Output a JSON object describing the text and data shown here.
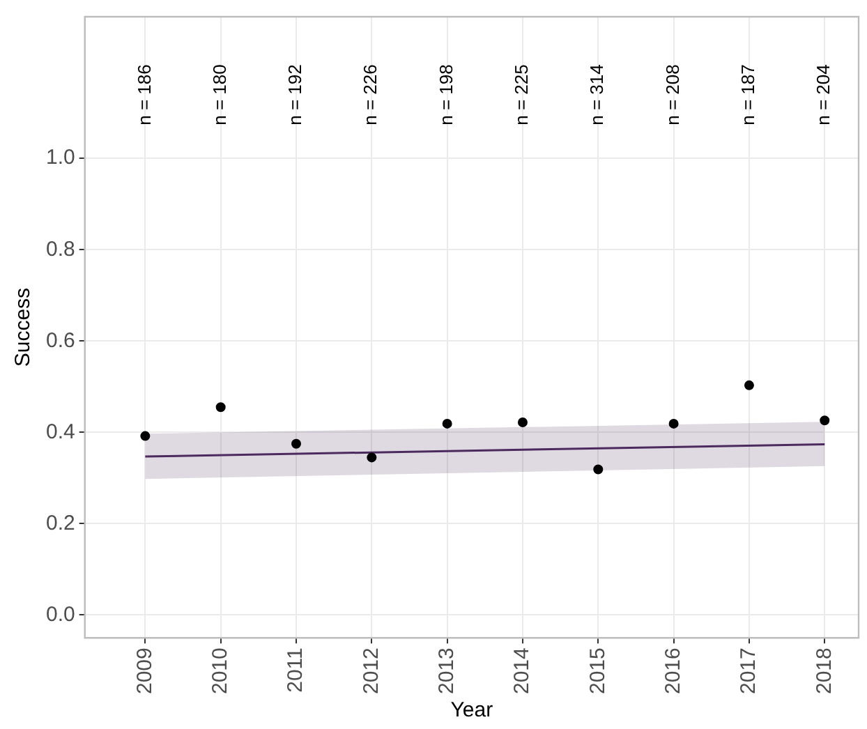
{
  "chart_data": {
    "type": "scatter",
    "xlabel": "Year",
    "ylabel": "Success",
    "x": [
      2009,
      2010,
      2011,
      2012,
      2013,
      2014,
      2015,
      2016,
      2017,
      2018
    ],
    "xlim": [
      2008.2,
      2018.45
    ],
    "xticks": [
      2009,
      2010,
      2011,
      2012,
      2013,
      2014,
      2015,
      2016,
      2017,
      2018
    ],
    "ylim": [
      -0.05,
      1.31
    ],
    "yticks": [
      {
        "value": 0,
        "label": "0.0"
      },
      {
        "value": 0.2,
        "label": "0.2"
      },
      {
        "value": 0.4,
        "label": "0.4"
      },
      {
        "value": 0.6,
        "label": "0.6"
      },
      {
        "value": 0.8,
        "label": "0.8"
      },
      {
        "value": 1,
        "label": "1.0"
      }
    ],
    "grid": true,
    "legend": false,
    "series": [
      {
        "color": "#000000",
        "marker": "circle",
        "values": [
          0.392,
          0.455,
          0.375,
          0.345,
          0.419,
          0.422,
          0.319,
          0.419,
          0.503,
          0.426
        ]
      },
      {
        "type": "line",
        "color": "#4b2a5e",
        "x": [
          2009,
          2018
        ],
        "values": [
          0.347,
          0.374
        ],
        "lower": [
          0.298,
          0.326
        ],
        "upper": [
          0.397,
          0.423
        ]
      }
    ],
    "annotations": [
      "n = 186",
      "n = 180",
      "n = 192",
      "n = 226",
      "n = 198",
      "n = 225",
      "n = 314",
      "n = 208",
      "n = 187",
      "n = 204"
    ]
  }
}
